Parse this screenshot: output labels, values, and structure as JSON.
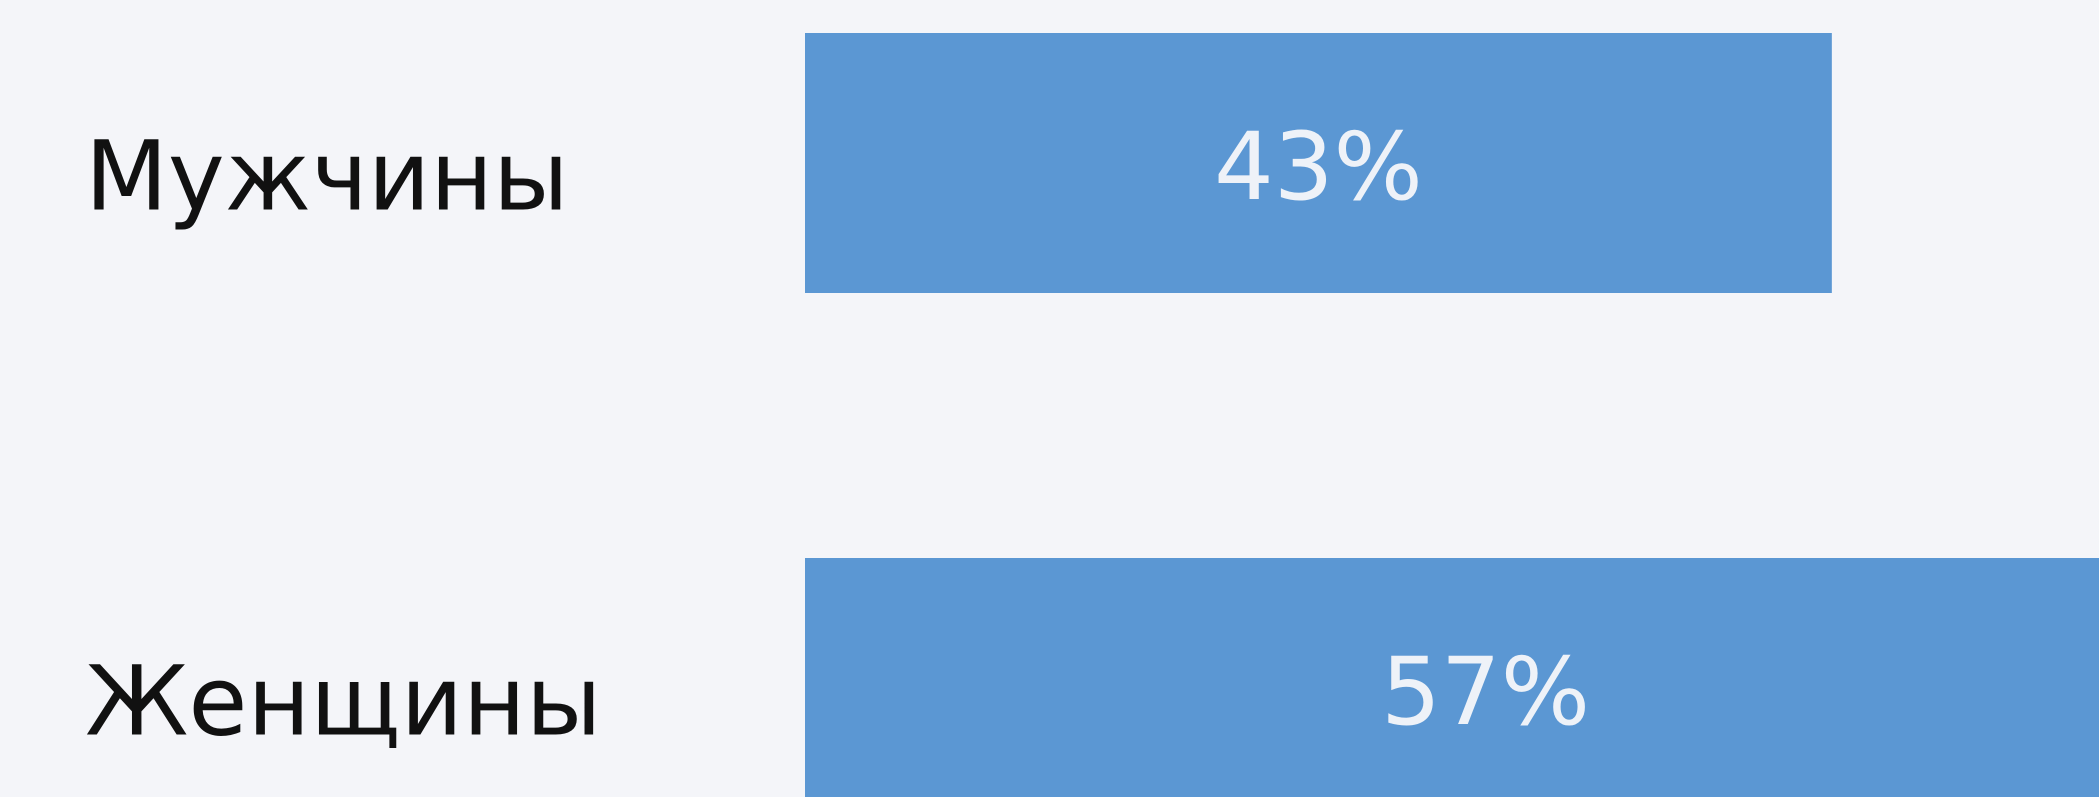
{
  "chart_data": {
    "type": "bar",
    "orientation": "horizontal",
    "categories": [
      "Мужчины",
      "Женщины"
    ],
    "values": [
      43,
      57
    ],
    "value_labels": [
      "43%",
      "57%"
    ],
    "color": "#5b97d3"
  }
}
